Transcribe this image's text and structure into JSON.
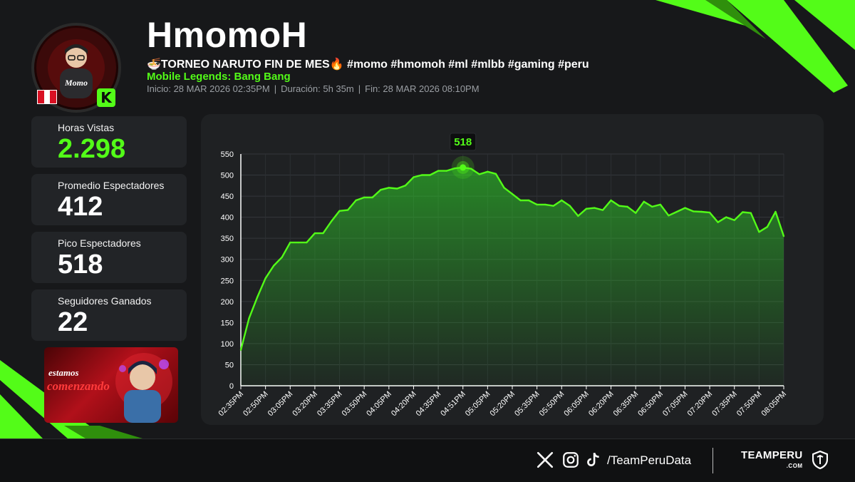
{
  "streamer": {
    "name": "HmomoH",
    "title": "🍜TORNEO NARUTO FIN DE MES🔥 #momo #hmomoh #ml #mlbb #gaming #peru",
    "game": "Mobile Legends: Bang Bang",
    "start": "Inicio: 28 MAR 2026 02:35PM",
    "duration": "Duración: 5h 35m",
    "end": "Fin: 28 MAR 2026 08:10PM",
    "separator": "|",
    "platform_badge": "K",
    "flag_colors": [
      "#d91023",
      "#ffffff",
      "#d91023"
    ],
    "avatar_caption": "Momo"
  },
  "stats": [
    {
      "label": "Horas Vistas",
      "value": "2.298",
      "highlight": true
    },
    {
      "label": "Promedio Espectadores",
      "value": "412",
      "highlight": false
    },
    {
      "label": "Pico Espectadores",
      "value": "518",
      "highlight": false
    },
    {
      "label": "Seguidores Ganados",
      "value": "22",
      "highlight": false
    }
  ],
  "banner": {
    "line1": "estamos",
    "line2": "comenzando"
  },
  "colors": {
    "accent": "#53fc18",
    "background": "#17181a",
    "panel": "#1f2123",
    "card": "#222427"
  },
  "chart_data": {
    "type": "area",
    "title": "",
    "xlabel": "",
    "ylabel": "",
    "ylim": [
      0,
      550
    ],
    "yticks": [
      0,
      50,
      100,
      150,
      200,
      250,
      300,
      350,
      400,
      450,
      500,
      550
    ],
    "xtick_labels": [
      "02:35PM",
      "02:50PM",
      "03:05PM",
      "03:20PM",
      "03:35PM",
      "03:50PM",
      "04:05PM",
      "04:20PM",
      "04:35PM",
      "04:51PM",
      "05:05PM",
      "05:20PM",
      "05:35PM",
      "05:50PM",
      "06:05PM",
      "06:20PM",
      "06:35PM",
      "06:50PM",
      "07:05PM",
      "07:20PM",
      "07:35PM",
      "07:50PM",
      "08:05PM"
    ],
    "peak": {
      "label": "518",
      "value": 518,
      "index": 27
    },
    "series": [
      {
        "name": "Espectadores",
        "values": [
          85,
          160,
          210,
          255,
          285,
          305,
          340,
          340,
          340,
          362,
          362,
          390,
          415,
          417,
          440,
          447,
          447,
          465,
          470,
          468,
          475,
          495,
          500,
          500,
          510,
          510,
          516,
          518,
          515,
          502,
          508,
          503,
          470,
          455,
          440,
          440,
          430,
          430,
          427,
          440,
          427,
          403,
          420,
          422,
          417,
          440,
          427,
          425,
          410,
          437,
          425,
          430,
          404,
          413,
          422,
          414,
          413,
          411,
          388,
          400,
          393,
          412,
          410,
          365,
          377,
          413,
          355
        ]
      }
    ]
  },
  "footer": {
    "icons": [
      "x-icon",
      "instagram-icon",
      "tiktok-icon"
    ],
    "handle": "/TeamPeruData",
    "brand": "TEAMPERU",
    "brand_sub": ".COM"
  }
}
